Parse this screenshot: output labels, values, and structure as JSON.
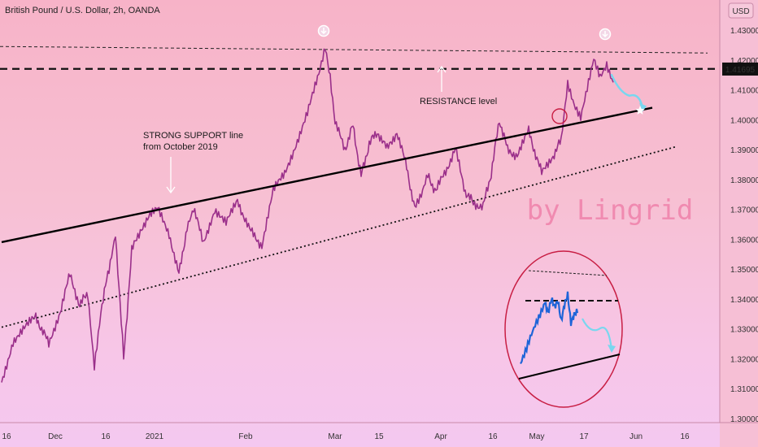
{
  "header": {
    "title": "British Pound / U.S. Dollar, 2h, OANDA",
    "currency": "USD"
  },
  "colors": {
    "candle_line": "#9a2f8a",
    "inset_line": "#1e64d8",
    "forecast": "#79d7ef",
    "price_tag_bg": "#111111",
    "watermark": "#f08ab0",
    "circle": "#c81e44"
  },
  "chart_data": {
    "type": "line",
    "title": "British Pound / U.S. Dollar, 2h, OANDA",
    "ylabel": "USD",
    "ylim": [
      1.2955,
      1.4395
    ],
    "y_ticks": [
      "1.30000",
      "1.31000",
      "1.32000",
      "1.33000",
      "1.34000",
      "1.35000",
      "1.36000",
      "1.37000",
      "1.38000",
      "1.39000",
      "1.40000",
      "1.41000",
      "1.42000",
      "1.43000"
    ],
    "x_labels": [
      "16",
      "Dec",
      "16",
      "2021",
      "Feb",
      "Mar",
      "15",
      "Apr",
      "16",
      "May",
      "17",
      "Jun",
      "16"
    ],
    "last_price": "1.41695",
    "series": [
      {
        "values": [
          [
            0,
            1.312
          ],
          [
            14,
            1.326
          ],
          [
            28,
            1.33
          ],
          [
            42,
            1.334
          ],
          [
            58,
            1.325
          ],
          [
            72,
            1.336
          ],
          [
            84,
            1.348
          ],
          [
            96,
            1.338
          ],
          [
            106,
            1.342
          ],
          [
            114,
            1.318
          ],
          [
            122,
            1.336
          ],
          [
            132,
            1.35
          ],
          [
            140,
            1.362
          ],
          [
            150,
            1.32
          ],
          [
            160,
            1.356
          ],
          [
            172,
            1.364
          ],
          [
            184,
            1.368
          ],
          [
            192,
            1.37
          ],
          [
            206,
            1.362
          ],
          [
            218,
            1.348
          ],
          [
            228,
            1.364
          ],
          [
            236,
            1.37
          ],
          [
            248,
            1.359
          ],
          [
            262,
            1.37
          ],
          [
            276,
            1.365
          ],
          [
            290,
            1.373
          ],
          [
            305,
            1.363
          ],
          [
            320,
            1.358
          ],
          [
            334,
            1.376
          ],
          [
            348,
            1.382
          ],
          [
            362,
            1.392
          ],
          [
            376,
            1.402
          ],
          [
            390,
            1.415
          ],
          [
            398,
            1.424
          ],
          [
            404,
            1.415
          ],
          [
            410,
            1.399
          ],
          [
            422,
            1.39
          ],
          [
            432,
            1.398
          ],
          [
            442,
            1.381
          ],
          [
            452,
            1.392
          ],
          [
            462,
            1.396
          ],
          [
            474,
            1.39
          ],
          [
            486,
            1.396
          ],
          [
            498,
            1.384
          ],
          [
            508,
            1.37
          ],
          [
            516,
            1.374
          ],
          [
            524,
            1.381
          ],
          [
            534,
            1.376
          ],
          [
            546,
            1.383
          ],
          [
            558,
            1.39
          ],
          [
            570,
            1.376
          ],
          [
            580,
            1.372
          ],
          [
            592,
            1.371
          ],
          [
            602,
            1.382
          ],
          [
            612,
            1.4
          ],
          [
            622,
            1.39
          ],
          [
            634,
            1.388
          ],
          [
            648,
            1.396
          ],
          [
            664,
            1.382
          ],
          [
            678,
            1.388
          ],
          [
            688,
            1.393
          ],
          [
            696,
            1.412
          ],
          [
            704,
            1.405
          ],
          [
            712,
            1.401
          ],
          [
            720,
            1.411
          ],
          [
            728,
            1.421
          ],
          [
            736,
            1.415
          ],
          [
            744,
            1.419
          ],
          [
            752,
            1.413
          ]
        ]
      }
    ],
    "levels": [
      {
        "label": "resistance-dashed",
        "value": 1.417
      },
      {
        "label": "upper-dotted",
        "value": 1.4245
      }
    ],
    "support_line": {
      "from": [
        0,
        1.359
      ],
      "to": [
        800,
        1.404
      ]
    },
    "channel_dotted": {
      "from": [
        0,
        1.3305
      ],
      "to": [
        830,
        1.391
      ]
    },
    "forecast": [
      [
        750,
        1.415
      ],
      [
        772,
        1.408
      ],
      [
        788,
        1.404
      ]
    ],
    "annotations": [
      {
        "text": "STRONG SUPPORT line"
      },
      {
        "text": "from October 2019"
      },
      {
        "text": "RESISTANCE level"
      }
    ],
    "inset_series": [
      [
        0,
        1.312
      ],
      [
        6,
        1.318
      ],
      [
        12,
        1.325
      ],
      [
        18,
        1.331
      ],
      [
        24,
        1.336
      ],
      [
        30,
        1.342
      ],
      [
        34,
        1.337
      ],
      [
        38,
        1.344
      ],
      [
        42,
        1.34
      ],
      [
        46,
        1.343
      ],
      [
        50,
        1.333
      ],
      [
        54,
        1.341
      ],
      [
        58,
        1.346
      ],
      [
        62,
        1.332
      ],
      [
        66,
        1.336
      ],
      [
        70,
        1.338
      ]
    ],
    "watermark": "by Lingrid"
  }
}
